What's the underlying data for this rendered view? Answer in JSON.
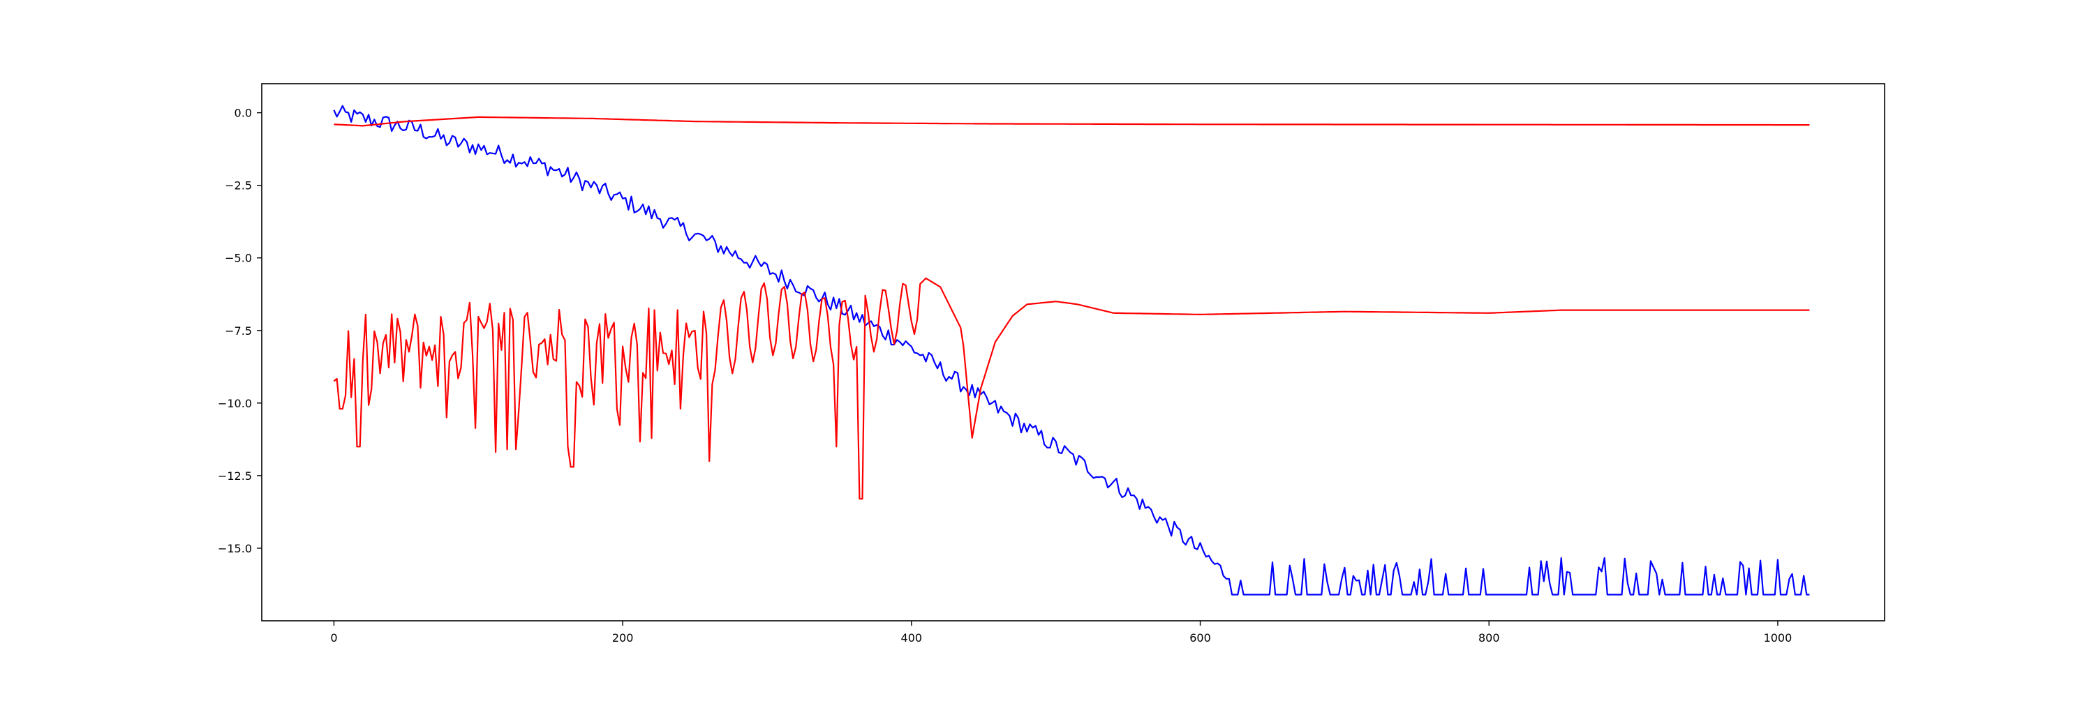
{
  "chart_data": {
    "type": "line",
    "title": "",
    "xlabel": "",
    "ylabel": "",
    "xlim": [
      -50,
      1074
    ],
    "ylim": [
      -17.5,
      1.0
    ],
    "x_ticks": [
      0,
      200,
      400,
      600,
      800,
      1000
    ],
    "x_tick_labels": [
      "0",
      "200",
      "400",
      "600",
      "800",
      "1000"
    ],
    "y_ticks": [
      0,
      -2.5,
      -5,
      -7.5,
      -10,
      -12.5,
      -15
    ],
    "y_tick_labels": [
      "0.0",
      "−2.5",
      "−5.0",
      "−7.5",
      "−10.0",
      "−12.5",
      "−15.0"
    ],
    "grid": false,
    "legend": "none",
    "x": {
      "start": 0,
      "end": 1023
    },
    "series": [
      {
        "color": "#0000ff",
        "knots": [
          [
            0,
            0.0
          ],
          [
            20,
            -0.2
          ],
          [
            40,
            -0.4
          ],
          [
            60,
            -0.6
          ],
          [
            80,
            -1.0
          ],
          [
            100,
            -1.2
          ],
          [
            150,
            -1.9
          ],
          [
            200,
            -3.0
          ],
          [
            250,
            -4.2
          ],
          [
            300,
            -5.4
          ],
          [
            350,
            -6.7
          ],
          [
            400,
            -8.1
          ],
          [
            450,
            -9.9
          ],
          [
            500,
            -11.5
          ],
          [
            550,
            -13.1
          ],
          [
            600,
            -15.1
          ],
          [
            620,
            -16.0
          ]
        ],
        "noise": 0.3,
        "floor": -16.6,
        "floor_spikes": true
      },
      {
        "color": "#ff0000",
        "knots": [
          [
            0,
            -0.4
          ],
          [
            20,
            -0.45
          ],
          [
            50,
            -0.3
          ],
          [
            100,
            -0.15
          ],
          [
            180,
            -0.2
          ],
          [
            250,
            -0.3
          ],
          [
            350,
            -0.35
          ],
          [
            450,
            -0.38
          ],
          [
            600,
            -0.4
          ],
          [
            1023,
            -0.42
          ]
        ]
      },
      {
        "color": "#ff0000",
        "knots": [
          [
            0,
            -9.0
          ],
          [
            10,
            -8.5
          ],
          [
            100,
            -7.9
          ],
          [
            250,
            -8.0
          ],
          [
            260,
            -7.5
          ],
          [
            300,
            -6.5
          ],
          [
            350,
            -7.0
          ],
          [
            400,
            -6.2
          ],
          [
            410,
            -5.7
          ],
          [
            420,
            -6.0
          ],
          [
            435,
            -7.5
          ],
          [
            442,
            -11.2
          ],
          [
            448,
            -9.5
          ],
          [
            458,
            -7.9
          ],
          [
            470,
            -7.0
          ],
          [
            480,
            -6.6
          ],
          [
            500,
            -6.5
          ],
          [
            515,
            -6.6
          ],
          [
            540,
            -6.9
          ],
          [
            600,
            -6.95
          ],
          [
            700,
            -6.85
          ],
          [
            800,
            -6.9
          ],
          [
            850,
            -6.8
          ],
          [
            1023,
            -6.8
          ]
        ],
        "noise_until": 255,
        "oscillate_from": 255,
        "oscillate_until": 405,
        "dips": [
          [
            5,
            -10.2
          ],
          [
            17,
            -11.5
          ],
          [
            78,
            -10.5
          ],
          [
            120,
            -11.6
          ],
          [
            162,
            -11.5
          ],
          [
            165,
            -12.2
          ],
          [
            240,
            -10.2
          ],
          [
            260,
            -12.0
          ],
          [
            365,
            -13.3
          ],
          [
            348,
            -11.5
          ]
        ]
      }
    ]
  }
}
